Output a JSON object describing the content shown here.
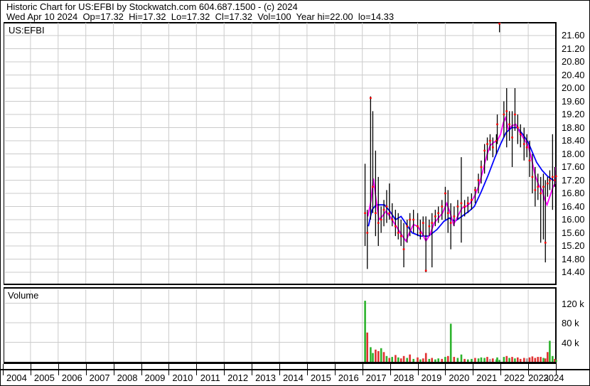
{
  "header": {
    "line1": "Historic Chart for US:EFBI by Stockwatch.com 604.687.1500 - (c) 2024",
    "line2": "Wed Apr 10 2024  Op=17.32  Hi=17.32  Lo=17.32  Cl=17.32  Vol=100  Year hi=22.00  lo=14.33"
  },
  "symbol_label": "US:EFBI",
  "volume_label": "Volume",
  "colors": {
    "grid": "#cbcbcb",
    "bar": "#000000",
    "close_dot": "#ff0000",
    "ma_short": "#ff00ff",
    "ma_long": "#0000ff",
    "vol_up": "#2db32d",
    "vol_down": "#e03131",
    "vol_neutral": "#a6a6a6"
  },
  "chart_data": {
    "type": "bar",
    "subtype": "ohlc-hilo-bars-with-close-dots-moving-averages-and-volume",
    "title": "US:EFBI historic price chart",
    "x_axis": {
      "years": [
        "2004",
        "2005",
        "2006",
        "2007",
        "2008",
        "2009",
        "2010",
        "2011",
        "2012",
        "2013",
        "2014",
        "2015",
        "2016",
        "2017",
        "2018",
        "2019",
        "2020",
        "2021",
        "2022",
        "2023",
        "2024"
      ],
      "range": [
        2004,
        2024.3
      ],
      "grid": true
    },
    "price_axis": {
      "tick_labels": [
        "21.60",
        "21.20",
        "20.80",
        "20.40",
        "20.00",
        "19.60",
        "19.20",
        "18.80",
        "18.40",
        "18.00",
        "17.60",
        "17.20",
        "16.80",
        "16.40",
        "16.00",
        "15.60",
        "15.20",
        "14.80",
        "14.40"
      ],
      "tick_values": [
        21.6,
        21.2,
        20.8,
        20.4,
        20.0,
        19.6,
        19.2,
        18.8,
        18.4,
        18.0,
        17.6,
        17.2,
        16.8,
        16.4,
        16.0,
        15.6,
        15.2,
        14.8,
        14.4
      ],
      "range": [
        13.95,
        22.02
      ],
      "grid": true
    },
    "volume_axis": {
      "tick_labels": [
        "120 k",
        "80 k",
        "40 k"
      ],
      "tick_values": [
        120,
        80,
        40
      ],
      "unit": "thousands of shares",
      "range": [
        0,
        155
      ],
      "grid": true
    },
    "bars_legend": "each bar = [decimal_year, high, low, close, volume_k, volume_color(g=up,r=down,n=neutral)]",
    "bars": [
      [
        2017.1,
        17.7,
        15.2,
        16.2,
        125,
        "g"
      ],
      [
        2017.18,
        16.3,
        14.5,
        15.6,
        60,
        "r"
      ],
      [
        2017.3,
        19.75,
        16.0,
        19.7,
        30,
        "g"
      ],
      [
        2017.38,
        19.3,
        16.2,
        17.0,
        18,
        "g"
      ],
      [
        2017.48,
        18.1,
        15.5,
        16.2,
        25,
        "r"
      ],
      [
        2017.58,
        17.3,
        15.2,
        15.9,
        22,
        "r"
      ],
      [
        2017.68,
        16.4,
        15.6,
        16.0,
        28,
        "g"
      ],
      [
        2017.78,
        16.6,
        15.8,
        16.3,
        20,
        "r"
      ],
      [
        2017.88,
        16.9,
        15.9,
        16.4,
        12,
        "g"
      ],
      [
        2017.98,
        17.1,
        16.0,
        16.2,
        8,
        "r"
      ],
      [
        2018.08,
        16.5,
        15.8,
        16.0,
        10,
        "g"
      ],
      [
        2018.2,
        16.3,
        15.5,
        15.8,
        14,
        "r"
      ],
      [
        2018.3,
        16.2,
        15.4,
        15.6,
        9,
        "g"
      ],
      [
        2018.4,
        16.0,
        15.2,
        15.5,
        7,
        "r"
      ],
      [
        2018.5,
        15.9,
        14.55,
        15.1,
        12,
        "r"
      ],
      [
        2018.62,
        16.0,
        15.3,
        15.8,
        8,
        "g"
      ],
      [
        2018.72,
        16.2,
        15.5,
        16.0,
        15,
        "r"
      ],
      [
        2018.85,
        16.3,
        15.6,
        16.0,
        6,
        "g"
      ],
      [
        2019.0,
        16.2,
        15.5,
        15.8,
        9,
        "r"
      ],
      [
        2019.1,
        16.0,
        15.4,
        15.6,
        5,
        "g"
      ],
      [
        2019.2,
        16.1,
        15.5,
        15.9,
        7,
        "r"
      ],
      [
        2019.3,
        16.1,
        14.4,
        14.45,
        18,
        "r"
      ],
      [
        2019.42,
        16.0,
        15.5,
        15.8,
        6,
        "g"
      ],
      [
        2019.52,
        16.2,
        14.55,
        15.9,
        8,
        "r"
      ],
      [
        2019.64,
        16.3,
        15.8,
        16.1,
        5,
        "g"
      ],
      [
        2019.75,
        16.4,
        15.9,
        16.2,
        7,
        "g"
      ],
      [
        2019.88,
        16.6,
        16.0,
        16.4,
        6,
        "r"
      ],
      [
        2020.0,
        17.0,
        16.0,
        16.8,
        10,
        "g"
      ],
      [
        2020.1,
        16.9,
        15.6,
        16.2,
        12,
        "r"
      ],
      [
        2020.2,
        16.5,
        15.1,
        15.9,
        78,
        "g"
      ],
      [
        2020.32,
        16.4,
        15.8,
        16.1,
        10,
        "r"
      ],
      [
        2020.45,
        16.6,
        16.0,
        16.4,
        8,
        "g"
      ],
      [
        2020.58,
        17.9,
        15.3,
        16.5,
        15,
        "g"
      ],
      [
        2020.7,
        16.6,
        16.1,
        16.4,
        6,
        "r"
      ],
      [
        2020.82,
        16.7,
        16.2,
        16.5,
        5,
        "g"
      ],
      [
        2020.95,
        16.8,
        16.3,
        16.6,
        6,
        "g"
      ],
      [
        2021.08,
        17.0,
        16.5,
        16.9,
        8,
        "r"
      ],
      [
        2021.2,
        17.4,
        16.8,
        17.2,
        7,
        "g"
      ],
      [
        2021.3,
        17.8,
        17.1,
        17.6,
        9,
        "g"
      ],
      [
        2021.42,
        18.3,
        17.4,
        18.1,
        8,
        "g"
      ],
      [
        2021.52,
        18.5,
        17.8,
        18.3,
        10,
        "r"
      ],
      [
        2021.62,
        18.6,
        18.1,
        18.4,
        6,
        "n"
      ],
      [
        2021.72,
        18.5,
        17.9,
        18.2,
        7,
        "r"
      ],
      [
        2021.85,
        18.6,
        18.0,
        18.4,
        5,
        "g"
      ],
      [
        2021.88,
        19.2,
        18.3,
        18.9,
        9,
        "g"
      ],
      [
        2021.96,
        22.0,
        21.7,
        22.0,
        4,
        "g"
      ],
      [
        2022.12,
        19.6,
        18.5,
        19.2,
        10,
        "g"
      ],
      [
        2022.22,
        20.0,
        18.2,
        19.3,
        12,
        "r"
      ],
      [
        2022.32,
        19.3,
        18.4,
        18.9,
        8,
        "g"
      ],
      [
        2022.42,
        19.3,
        17.6,
        18.5,
        10,
        "r"
      ],
      [
        2022.52,
        20.0,
        18.7,
        19.2,
        7,
        "g"
      ],
      [
        2022.62,
        19.2,
        18.3,
        18.8,
        9,
        "r"
      ],
      [
        2022.72,
        18.9,
        18.2,
        18.6,
        6,
        "r"
      ],
      [
        2022.85,
        18.8,
        17.8,
        18.3,
        8,
        "r"
      ],
      [
        2022.95,
        18.6,
        17.9,
        18.2,
        7,
        "n"
      ],
      [
        2023.05,
        18.4,
        17.3,
        17.8,
        9,
        "r"
      ],
      [
        2023.15,
        18.0,
        16.8,
        17.3,
        11,
        "r"
      ],
      [
        2023.25,
        17.6,
        16.4,
        16.9,
        8,
        "r"
      ],
      [
        2023.35,
        17.4,
        16.6,
        17.0,
        10,
        "r"
      ],
      [
        2023.45,
        17.3,
        15.3,
        16.8,
        10,
        "r"
      ],
      [
        2023.55,
        17.4,
        15.4,
        17.0,
        8,
        "g"
      ],
      [
        2023.62,
        17.2,
        14.7,
        15.3,
        7,
        "r"
      ],
      [
        2023.7,
        17.3,
        16.7,
        17.1,
        20,
        "r"
      ],
      [
        2023.78,
        17.5,
        16.9,
        17.2,
        43,
        "g"
      ],
      [
        2023.88,
        18.6,
        16.3,
        17.3,
        12,
        "g"
      ],
      [
        2023.96,
        17.6,
        17.0,
        17.2,
        6,
        "r"
      ],
      [
        2024.01,
        17.5,
        17.1,
        17.32,
        4,
        "g"
      ]
    ],
    "ma_short": {
      "name": "short moving average",
      "points": [
        [
          2017.2,
          16.1
        ],
        [
          2017.32,
          16.6
        ],
        [
          2017.4,
          17.25
        ],
        [
          2017.5,
          16.6
        ],
        [
          2017.6,
          16.0
        ],
        [
          2017.72,
          16.1
        ],
        [
          2017.85,
          16.25
        ],
        [
          2018.0,
          16.1
        ],
        [
          2018.15,
          15.9
        ],
        [
          2018.3,
          15.7
        ],
        [
          2018.45,
          15.5
        ],
        [
          2018.58,
          15.35
        ],
        [
          2018.7,
          15.6
        ],
        [
          2018.85,
          15.85
        ],
        [
          2019.0,
          15.8
        ],
        [
          2019.15,
          15.6
        ],
        [
          2019.3,
          15.35
        ],
        [
          2019.45,
          15.55
        ],
        [
          2019.6,
          15.9
        ],
        [
          2019.75,
          16.05
        ],
        [
          2019.9,
          16.2
        ],
        [
          2020.05,
          16.5
        ],
        [
          2020.18,
          16.2
        ],
        [
          2020.3,
          15.85
        ],
        [
          2020.45,
          16.1
        ],
        [
          2020.6,
          16.35
        ],
        [
          2020.75,
          16.4
        ],
        [
          2020.9,
          16.5
        ],
        [
          2021.05,
          16.7
        ],
        [
          2021.2,
          17.0
        ],
        [
          2021.35,
          17.45
        ],
        [
          2021.5,
          17.95
        ],
        [
          2021.62,
          18.25
        ],
        [
          2021.75,
          18.35
        ],
        [
          2021.88,
          18.4
        ],
        [
          2022.0,
          18.6
        ],
        [
          2022.1,
          18.95
        ],
        [
          2022.18,
          19.1
        ],
        [
          2022.28,
          18.75
        ],
        [
          2022.4,
          18.85
        ],
        [
          2022.55,
          18.9
        ],
        [
          2022.7,
          18.65
        ],
        [
          2022.85,
          18.45
        ],
        [
          2023.0,
          18.25
        ],
        [
          2023.12,
          17.85
        ],
        [
          2023.25,
          17.35
        ],
        [
          2023.38,
          17.05
        ],
        [
          2023.5,
          16.9
        ],
        [
          2023.6,
          16.6
        ],
        [
          2023.68,
          16.45
        ],
        [
          2023.78,
          16.7
        ],
        [
          2023.9,
          17.0
        ],
        [
          2024.0,
          17.1
        ],
        [
          2024.08,
          17.6
        ]
      ]
    },
    "ma_long": {
      "name": "long moving average",
      "points": [
        [
          2017.22,
          15.8
        ],
        [
          2017.35,
          16.3
        ],
        [
          2017.5,
          16.45
        ],
        [
          2017.8,
          16.45
        ],
        [
          2018.0,
          16.25
        ],
        [
          2018.2,
          16.0
        ],
        [
          2018.4,
          16.1
        ],
        [
          2018.6,
          15.85
        ],
        [
          2018.8,
          15.6
        ],
        [
          2019.1,
          15.5
        ],
        [
          2019.4,
          15.5
        ],
        [
          2019.7,
          15.7
        ],
        [
          2019.95,
          15.95
        ],
        [
          2020.15,
          16.05
        ],
        [
          2020.35,
          15.95
        ],
        [
          2020.6,
          16.1
        ],
        [
          2020.85,
          16.25
        ],
        [
          2021.05,
          16.4
        ],
        [
          2021.3,
          16.85
        ],
        [
          2021.55,
          17.35
        ],
        [
          2021.8,
          17.9
        ],
        [
          2022.0,
          18.3
        ],
        [
          2022.2,
          18.65
        ],
        [
          2022.4,
          18.8
        ],
        [
          2022.6,
          18.8
        ],
        [
          2022.8,
          18.6
        ],
        [
          2023.0,
          18.35
        ],
        [
          2023.15,
          18.05
        ],
        [
          2023.3,
          17.75
        ],
        [
          2023.5,
          17.5
        ],
        [
          2023.7,
          17.32
        ],
        [
          2023.9,
          17.2
        ],
        [
          2024.0,
          17.2
        ],
        [
          2024.08,
          17.4
        ]
      ]
    }
  }
}
